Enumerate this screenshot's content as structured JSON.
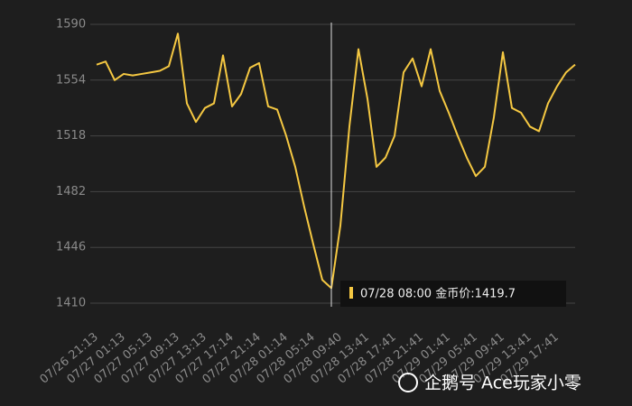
{
  "chart_data": {
    "type": "line",
    "categories": [
      "07/26 21:13",
      null,
      null,
      "07/27 01:13",
      null,
      null,
      "07/27 05:13",
      null,
      null,
      "07/27 09:13",
      null,
      null,
      "07/27 13:13",
      null,
      null,
      "07/27 17:14",
      null,
      null,
      "07/27 21:14",
      null,
      null,
      "07/28 01:14",
      null,
      null,
      "07/28 05:14",
      null,
      null,
      "07/28 09:40",
      null,
      null,
      "07/28 13:41",
      null,
      null,
      "07/28 17:41",
      null,
      null,
      "07/28 21:41",
      null,
      null,
      "07/29 01:41",
      null,
      null,
      "07/29 05:41",
      null,
      null,
      "07/29 09:41",
      null,
      null,
      "07/29 13:41",
      null,
      null,
      "07/29 17:41",
      null,
      null
    ],
    "series": [
      {
        "name": "金币价",
        "color": "#f5c842",
        "values": [
          1564,
          1566,
          1554,
          1558,
          1557,
          1558,
          1559,
          1560,
          1563,
          1584,
          1539,
          1527,
          1536,
          1539,
          1570,
          1537,
          1545,
          1562,
          1565,
          1537,
          1535,
          1518,
          1498,
          1472,
          1448,
          1425,
          1419.7,
          1460,
          1524,
          1574,
          1542,
          1498,
          1504,
          1518,
          1559,
          1568,
          1550,
          1574,
          1547,
          1533,
          1518,
          1504,
          1492,
          1498,
          1530,
          1572,
          1536,
          1533,
          1524,
          1521,
          1539,
          1550,
          1559,
          1564
        ]
      }
    ],
    "ylim": [
      1410,
      1590
    ],
    "yticks": [
      1410,
      1446,
      1482,
      1518,
      1554,
      1590
    ],
    "grid": true,
    "tooltip": {
      "label": "07/28 08:00 金币价:1419.7",
      "value": 1419.7
    },
    "watermark": "企鹅号 Ace玩家小零"
  }
}
